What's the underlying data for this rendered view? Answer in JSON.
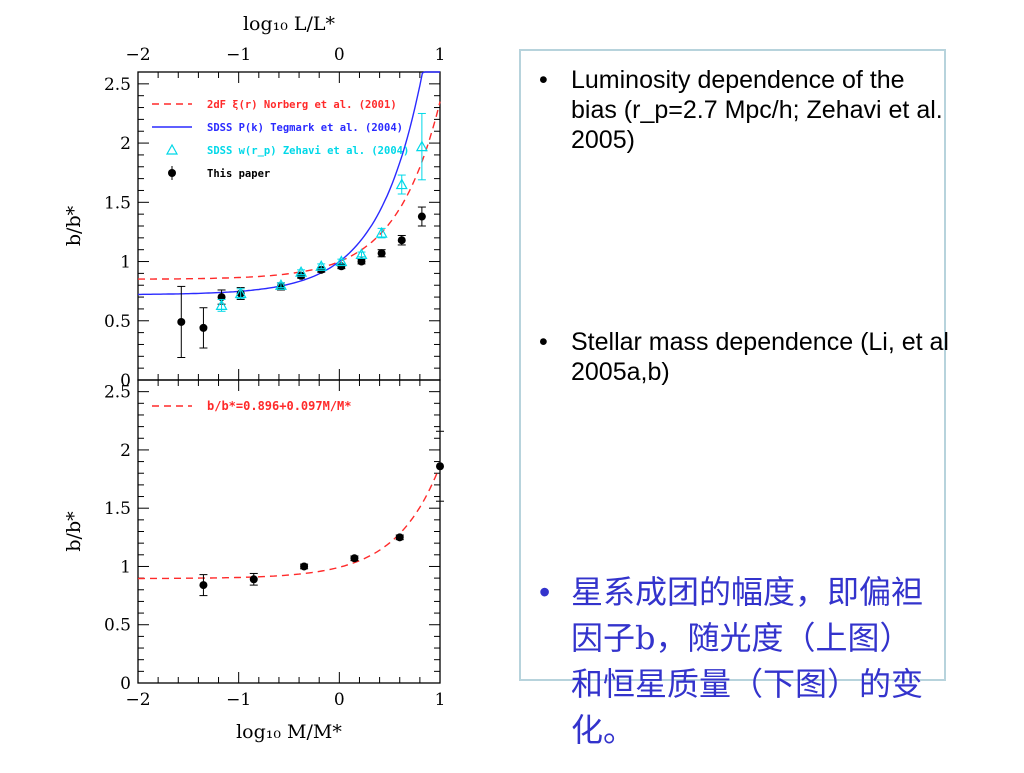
{
  "colors": {
    "norberg": "#ff2a2a",
    "tegmark": "#2a2aff",
    "zehavi": "#00d8e8",
    "this_paper": "#000000",
    "fit": "#ff2a2a",
    "text_chinese": "#3333cc",
    "box_border": "#b7d3dc"
  },
  "chart_data": [
    {
      "type": "scatter",
      "panel": "top",
      "top_axis_label": "log₁₀ L/L*",
      "top_axis_ticks": [
        "−2",
        "−1",
        "0",
        "1"
      ],
      "top_axis_range": [
        -2,
        1
      ],
      "ylabel": "b/b*",
      "ylim": [
        0,
        2.6
      ],
      "yticks": [
        "0",
        "0.5",
        "1",
        "1.5",
        "2",
        "2.5"
      ],
      "xlim": [
        -2,
        1
      ],
      "legend_placement": "top-left",
      "legend": [
        {
          "name": "2dF ξ(r) Norberg et al. (2001)",
          "style": "red-dashed"
        },
        {
          "name": "SDSS P(k) Tegmark et al. (2004)",
          "style": "blue-solid"
        },
        {
          "name": "SDSS w(r_p) Zehavi et al. (2004)",
          "style": "cyan-triangle"
        },
        {
          "name": "This paper",
          "style": "black-dot-errorbar"
        }
      ],
      "series": [
        {
          "name": "This paper",
          "x": [
            -1.57,
            -1.35,
            -1.17,
            -0.98,
            -0.58,
            -0.38,
            -0.18,
            0.02,
            0.22,
            0.42,
            0.62,
            0.82
          ],
          "y": [
            0.49,
            0.44,
            0.7,
            0.73,
            0.79,
            0.88,
            0.93,
            0.96,
            1.0,
            1.07,
            1.18,
            1.38
          ],
          "yerr": [
            0.3,
            0.17,
            0.06,
            0.05,
            0.03,
            0.02,
            0.02,
            0.02,
            0.02,
            0.03,
            0.04,
            0.08
          ]
        },
        {
          "name": "Zehavi",
          "x": [
            -1.17,
            -0.98,
            -0.58,
            -0.38,
            -0.18,
            0.02,
            0.22,
            0.42,
            0.62,
            0.82
          ],
          "y": [
            0.63,
            0.73,
            0.8,
            0.91,
            0.96,
            1.0,
            1.06,
            1.24,
            1.65,
            1.97
          ],
          "yerr": [
            0.05,
            0.04,
            0.02,
            0.02,
            0.02,
            0.02,
            0.02,
            0.04,
            0.08,
            0.28
          ]
        }
      ]
    },
    {
      "type": "scatter",
      "panel": "bottom",
      "xlabel": "log₁₀ M/M*",
      "xticks": [
        "−2",
        "−1",
        "0",
        "1"
      ],
      "xlim": [
        -2,
        1
      ],
      "ylabel": "b/b*",
      "ylim": [
        0,
        2.6
      ],
      "yticks": [
        "0",
        "0.5",
        "1",
        "1.5",
        "2",
        "2.5"
      ],
      "fit_label": "b/b*=0.896+0.097M/M*",
      "fit": {
        "a": 0.896,
        "b": 0.097
      },
      "series": [
        {
          "name": "This paper",
          "x": [
            -1.35,
            -0.85,
            -0.35,
            0.15,
            0.6,
            1.0
          ],
          "y": [
            0.84,
            0.89,
            1.0,
            1.07,
            1.25,
            1.86
          ],
          "yerr": [
            0.09,
            0.05,
            0.02,
            0.02,
            0.02,
            0.3
          ]
        }
      ]
    }
  ],
  "text": {
    "bullet_symbol": "•",
    "bullet_1": "Luminosity dependence of the bias (r_p=2.7 Mpc/h; Zehavi et al. 2005)",
    "bullet_2": "Stellar mass dependence (Li, et al 2005a,b)",
    "bullet_3": "星系成团的幅度，即偏袒因子b，随光度（上图）和恒星质量（下图）的变化。"
  }
}
